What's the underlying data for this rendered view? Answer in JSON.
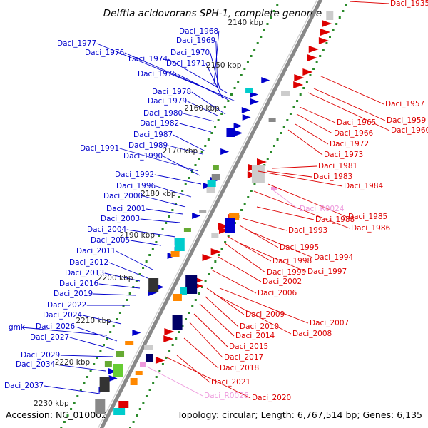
{
  "header": {
    "title": "Delftia acidovorans SPH-1, complete genome",
    "accession": "Accession: NC_010002",
    "topology": "Topology: circular; Length: 6,767,514 bp; Genes: 6,135"
  },
  "colors": {
    "forward": "#0000cc",
    "reverse": "#dd0000",
    "rna": "#ee99dd",
    "backbone": "#888888",
    "ticks": "#2a8a2a",
    "feature_palette": [
      "#0000cc",
      "#dd0000",
      "#00cccc",
      "#ff8800",
      "#66aa33",
      "#ffcc00",
      "#aaaaaa",
      "#000066",
      "#cc66cc"
    ]
  },
  "ticks": [
    "2140 kbp",
    "2150 kbp",
    "2160 kbp",
    "2170 kbp",
    "2180 kbp",
    "2190 kbp",
    "2200 kbp",
    "2210 kbp",
    "2220 kbp",
    "2230 kbp"
  ],
  "genes_left": [
    "Daci_1968",
    "Daci_1969",
    "Daci_1977",
    "Daci_1970",
    "Daci_1976",
    "Daci_1974",
    "Daci_1971",
    "Daci_1975",
    "Daci_1978",
    "Daci_1979",
    "Daci_1980",
    "Daci_1982",
    "Daci_1987",
    "Daci_1989",
    "Daci_1991",
    "Daci_1990",
    "Daci_1992",
    "Daci_1996",
    "Daci_2000",
    "Daci_2001",
    "Daci_2003",
    "Daci_2004",
    "Daci_2005",
    "Daci_2011",
    "Daci_2012",
    "Daci_2013",
    "Daci_2016",
    "Daci_2019",
    "Daci_2022",
    "Daci_2024",
    "gmk",
    "Daci_2026",
    "Daci_2027",
    "Daci_2029",
    "Daci_2034",
    "Daci_2037"
  ],
  "genes_right": [
    "Daci_1935",
    "Daci_1957",
    "Daci_1959",
    "Daci_1960",
    "Daci_1965",
    "Daci_1966",
    "Daci_1972",
    "Daci_1973",
    "Daci_1981",
    "Daci_1983",
    "Daci_1984",
    "Daci_1985",
    "Daci_1986",
    "Daci_1988",
    "Daci_1993",
    "Daci_1995",
    "Daci_1994",
    "Daci_1998",
    "Daci_1997",
    "Daci_1999",
    "Daci_2002",
    "Daci_2006",
    "Daci_2009",
    "Daci_2007",
    "Daci_2008",
    "Daci_2010",
    "Daci_2014",
    "Daci_2015",
    "Daci_2017",
    "Daci_2018",
    "Daci_2021",
    "Daci_2020"
  ],
  "rna_labels": [
    "Daci_R0024",
    "Daci_R0026"
  ]
}
